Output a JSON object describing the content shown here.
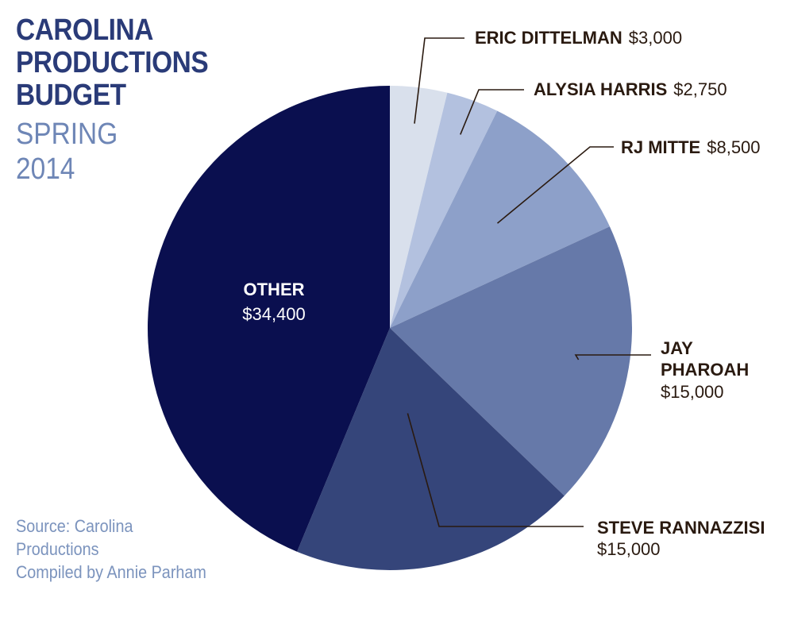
{
  "title_lines": [
    "CAROLINA",
    "PRODUCTIONS",
    "BUDGET"
  ],
  "subtitle_lines": [
    "SPRING",
    "2014"
  ],
  "source_lines": [
    "Source: Carolina",
    "Productions",
    "Compiled by Annie Parham"
  ],
  "colors": {
    "title": "#2a3b78",
    "subtitle": "#6e86b6",
    "source": "#7b93bd",
    "label_text": "#2a1a10",
    "leader_line": "#2a1a10"
  },
  "chart_data": {
    "type": "pie",
    "start": "12 o'clock",
    "direction": "clockwise",
    "slices": [
      {
        "name": "ERIC DITTELMAN",
        "value": 3000,
        "value_label": "$3,000",
        "color": "#d9e0ec"
      },
      {
        "name": "ALYSIA HARRIS",
        "value": 2750,
        "value_label": "$2,750",
        "color": "#b3c1df"
      },
      {
        "name": "RJ MITTE",
        "value": 8500,
        "value_label": "$8,500",
        "color": "#8da0c9"
      },
      {
        "name": "JAY PHAROAH",
        "value": 15000,
        "value_label": "$15,000",
        "color": "#6679a9"
      },
      {
        "name": "STEVE RANNAZZISI",
        "value": 15000,
        "value_label": "$15,000",
        "color": "#35457a"
      },
      {
        "name": "OTHER",
        "value": 34400,
        "value_label": "$34,400",
        "color": "#0a0f4f"
      }
    ]
  }
}
